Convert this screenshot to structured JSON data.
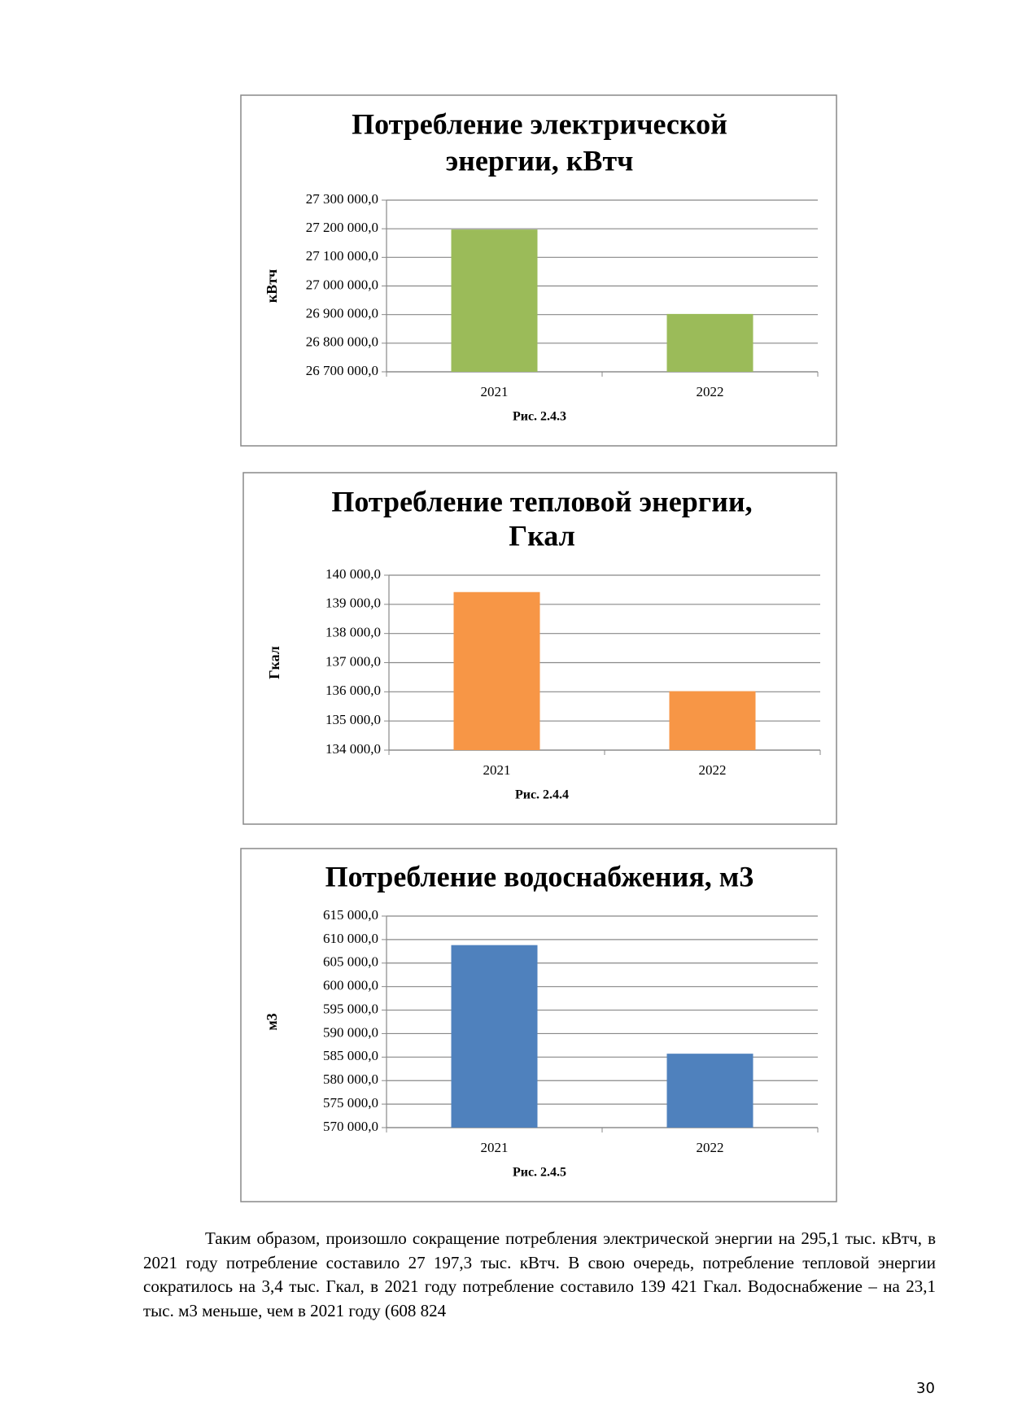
{
  "chart_data": [
    {
      "type": "bar",
      "title": [
        "Потребление электрической",
        "энергии, кВтч"
      ],
      "ylabel": "кВтч",
      "caption": "Рис. 2.4.3",
      "categories": [
        "2021",
        "2022"
      ],
      "values": [
        27197300,
        26902200
      ],
      "color": "#9bbb59",
      "ylim": [
        26700000,
        27300000
      ],
      "yticks": [
        {
          "value": 26700000,
          "label": "26 700 000,0"
        },
        {
          "value": 26800000,
          "label": "26 800 000,0"
        },
        {
          "value": 26900000,
          "label": "26 900 000,0"
        },
        {
          "value": 27000000,
          "label": "27 000 000,0"
        },
        {
          "value": 27100000,
          "label": "27 100 000,0"
        },
        {
          "value": 27200000,
          "label": "27 200 000,0"
        },
        {
          "value": 27300000,
          "label": "27 300 000,0"
        }
      ],
      "grid": true
    },
    {
      "type": "bar",
      "title": [
        "Потребление тепловой энергии,",
        "Гкал"
      ],
      "ylabel": "Гкал",
      "caption": "Рис. 2.4.4",
      "categories": [
        "2021",
        "2022"
      ],
      "values": [
        139421,
        136021
      ],
      "color": "#f79646",
      "ylim": [
        134000,
        140000
      ],
      "yticks": [
        {
          "value": 134000,
          "label": "134 000,0"
        },
        {
          "value": 135000,
          "label": "135 000,0"
        },
        {
          "value": 136000,
          "label": "136 000,0"
        },
        {
          "value": 137000,
          "label": "137 000,0"
        },
        {
          "value": 138000,
          "label": "138 000,0"
        },
        {
          "value": 139000,
          "label": "139 000,0"
        },
        {
          "value": 140000,
          "label": "140 000,0"
        }
      ],
      "grid": true
    },
    {
      "type": "bar",
      "title": [
        "Потребление водоснабжения, м3"
      ],
      "ylabel": "м3",
      "caption": "Рис. 2.4.5",
      "categories": [
        "2021",
        "2022"
      ],
      "values": [
        608824,
        585724
      ],
      "color": "#4f81bd",
      "ylim": [
        570000,
        615000
      ],
      "yticks": [
        {
          "value": 570000,
          "label": "570 000,0"
        },
        {
          "value": 575000,
          "label": "575 000,0"
        },
        {
          "value": 580000,
          "label": "580 000,0"
        },
        {
          "value": 585000,
          "label": "585 000,0"
        },
        {
          "value": 590000,
          "label": "590 000,0"
        },
        {
          "value": 595000,
          "label": "595 000,0"
        },
        {
          "value": 600000,
          "label": "600 000,0"
        },
        {
          "value": 605000,
          "label": "605 000,0"
        },
        {
          "value": 610000,
          "label": "610 000,0"
        },
        {
          "value": 615000,
          "label": "615 000,0"
        }
      ],
      "grid": true
    }
  ],
  "paragraph": "Таким образом, произошло сокращение потребления электрической энергии на 295,1 тыс. кВтч, в 2021 году потребление составило 27 197,3 тыс. кВтч. В свою очередь, потребление тепловой энергии сократилось на 3,4 тыс. Гкал, в 2021 году потребление составило 139 421 Гкал. Водоснабжение – на 23,1 тыс. м3 меньше, чем в 2021 году (608 824",
  "page_number": "30"
}
